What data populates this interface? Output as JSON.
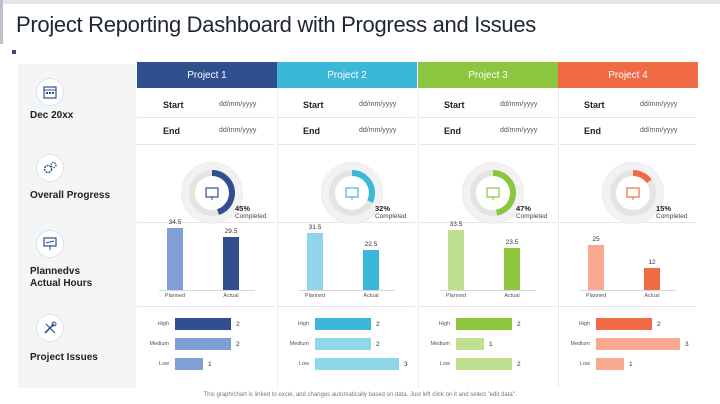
{
  "title": "Project Reporting Dashboard with Progress and Issues",
  "side": {
    "date_label": "Dec 20xx",
    "progress_label": "Overall Progress",
    "hours_label_1": "Plannedvs",
    "hours_label_2": "Actual Hours",
    "issues_label": "Project Issues"
  },
  "start_label": "Start",
  "end_label": "End",
  "date_placeholder": "dd/mm/yyyy",
  "completed_label": "Completed",
  "planned_label": "Planned",
  "actual_label": "Actual",
  "issue_levels": [
    "High",
    "Medium",
    "Low"
  ],
  "footer": "This graph/chart is linked to excel, and changes automatically based on data. Just left click on it and select \"edit data\".",
  "projects": [
    {
      "name": "Project 1",
      "color": "#2f4f8f",
      "light": "#7f9fd6",
      "progress": "45%",
      "progress_value": 45,
      "planned": "34.5",
      "actual": "29.5",
      "planned_value": 34.5,
      "actual_value": 29.5,
      "issues": [
        {
          "value": "2",
          "n": 2
        },
        {
          "value": "2",
          "n": 2
        },
        {
          "value": "1",
          "n": 1
        }
      ]
    },
    {
      "name": "Project 2",
      "color": "#3bb8d8",
      "light": "#8fd6ea",
      "progress": "32%",
      "progress_value": 32,
      "planned": "31.5",
      "actual": "22.5",
      "planned_value": 31.5,
      "actual_value": 22.5,
      "issues": [
        {
          "value": "2",
          "n": 2
        },
        {
          "value": "2",
          "n": 2
        },
        {
          "value": "3",
          "n": 3
        }
      ]
    },
    {
      "name": "Project 3",
      "color": "#8cc63f",
      "light": "#bfe08f",
      "progress": "47%",
      "progress_value": 47,
      "planned": "33.5",
      "actual": "23.5",
      "planned_value": 33.5,
      "actual_value": 23.5,
      "issues": [
        {
          "value": "2",
          "n": 2
        },
        {
          "value": "1",
          "n": 1
        },
        {
          "value": "2",
          "n": 2
        }
      ]
    },
    {
      "name": "Project 4",
      "color": "#f06a45",
      "light": "#f7a98f",
      "progress": "15%",
      "progress_value": 15,
      "planned": "25",
      "actual": "12",
      "planned_value": 25,
      "actual_value": 12,
      "issues": [
        {
          "value": "2",
          "n": 2
        },
        {
          "value": "3",
          "n": 3
        },
        {
          "value": "1",
          "n": 1
        }
      ]
    }
  ]
}
